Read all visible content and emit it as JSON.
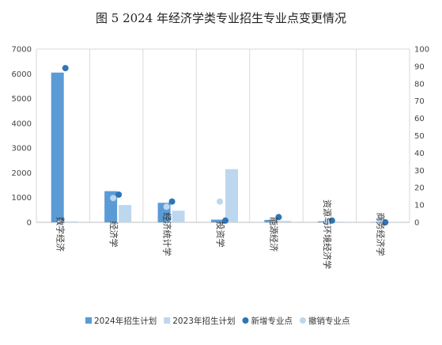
{
  "chart_data": {
    "type": "bar",
    "title": "图 5  2024 年经济学类专业招生专业点变更情况",
    "categories": [
      "数字经济",
      "经济学",
      "经济统计学",
      "投资学",
      "能源经济",
      "资源与环境经济学",
      "商务经济学"
    ],
    "series": [
      {
        "name": "2024年招生计划",
        "kind": "bar",
        "axis": "left",
        "color": "#5b9bd5",
        "values": [
          6050,
          1260,
          790,
          110,
          100,
          40,
          10
        ]
      },
      {
        "name": "2023年招生计划",
        "kind": "bar",
        "axis": "left",
        "color": "#bdd7ee",
        "values": [
          40,
          700,
          470,
          2150,
          60,
          30,
          20
        ]
      },
      {
        "name": "新增专业点",
        "kind": "dot",
        "axis": "right",
        "color": "#2e75b6",
        "values": [
          89,
          16,
          12,
          1,
          3,
          1,
          0
        ]
      },
      {
        "name": "撤销专业点",
        "kind": "dot",
        "axis": "right",
        "color": "#bdd7ee",
        "values": [
          0,
          14,
          9,
          12,
          0,
          0,
          1
        ]
      }
    ],
    "ylim_left": [
      0,
      7000
    ],
    "yticks_left": [
      0,
      1000,
      2000,
      3000,
      4000,
      5000,
      6000,
      7000
    ],
    "ylim_right": [
      0,
      100
    ],
    "yticks_right": [
      0,
      10,
      20,
      30,
      40,
      50,
      60,
      70,
      80,
      90,
      100
    ],
    "grid": "vertical",
    "legend": "bottom"
  }
}
